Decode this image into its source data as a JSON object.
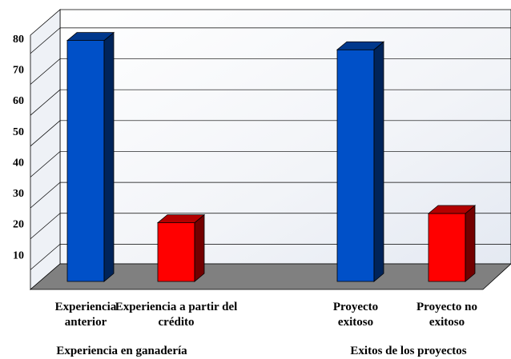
{
  "chart_data": {
    "type": "bar3d",
    "categories": [
      "Experiencia anterior",
      "Experiencia a partir del crédito",
      "Proyecto exitoso",
      "Proyecto no exitoso"
    ],
    "groups": [
      "Experiencia en ganadería",
      "Exitos de los proyectos"
    ],
    "values": [
      78,
      19,
      75,
      22
    ],
    "colors": [
      "#0050c8",
      "#ff0000",
      "#0050c8",
      "#ff0000"
    ],
    "ylim": [
      0,
      88
    ],
    "yticks": [
      10,
      20,
      30,
      40,
      50,
      60,
      70,
      80
    ],
    "grid": true
  }
}
